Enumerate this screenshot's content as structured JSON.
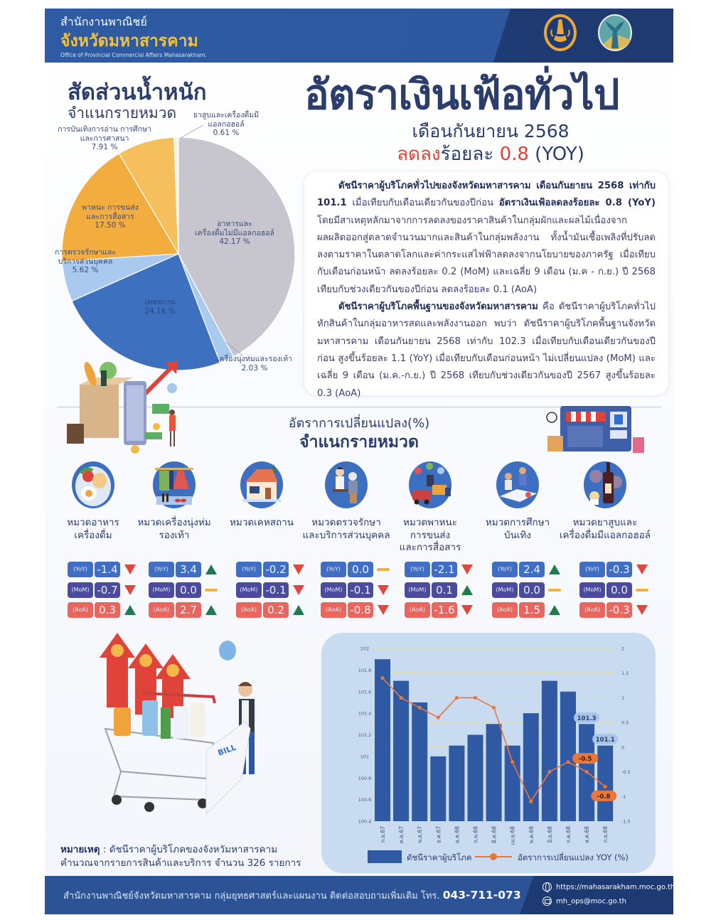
{
  "header": {
    "org_line1": "สำนักงานพาณิชย์",
    "org_line2": "จังหวัดมหาสารคาม",
    "org_en": "Office of Provincial Commercial Affairs Mahasarakham."
  },
  "weights": {
    "title": "สัดส่วนน้ำหนัก",
    "subtitle": "จำแนกรายหมวด"
  },
  "headline": {
    "title": "อัตราเงินเฟ้อทั่วไป",
    "month": "เดือนกันยายน 2568",
    "change_word": "ลดลง",
    "change_mid": "ร้อยละ ",
    "change_value": "0.8",
    "change_suffix": " (YOY)"
  },
  "summary": {
    "p1_b1": "ดัชนีราคาผู้บริโภคทั่วไปของจังหวัดมหาสารคาม เดือนกันยายน 2568 เท่ากับ 101.1",
    "p1_t1": " เมื่อเทียบกับเดือนเดียวกันของปีก่อน ",
    "p1_b2": "อัตราเงินเฟ้อลดลงร้อยละ 0.8 (YoY)",
    "p1_t2": " โดยมีสาเหตุหลักมาจากการลดลงของราคาสินค้าในกลุ่มผักและผลไม้เนื่องจากผลผลิตออกสู่ตลาดจำนวนมากและสินค้าในกลุ่มพลังงาน ทั้งน้ำมันเชื้อเพลิงที่ปรับลดลงตามราคาในตลาดโลกและค่ากระแสไฟฟ้าลดลงจากนโยบายของภาครัฐ เมื่อเทียบกับเดือนก่อนหน้า ลดลงร้อยละ 0.2 (MoM) และเฉลี่ย 9 เดือน (ม.ค - ก.ย.) ปี 2568 เทียบกับช่วงเดียวกันของปีก่อน ลดลงร้อยละ 0.1 (AoA)",
    "p2_b1": "ดัชนีราคาผู้บริโภคพื้นฐานของจังหวัดมหาสารคาม",
    "p2_t1": " คือ ดัชนีราคาผู้บริโภคทั่วไปหักสินค้าในกลุ่มอาหารสดและพลังงานออก พบว่า ดัชนีราคาผู้บริโภคพื้นฐานจังหวัดมหาสารคาม เดือนกันยายน 2568 เท่ากับ 102.3 เมื่อเทียบกับเดือนเดียวกันของปีก่อน สูงขึ้นร้อยละ 1.1 (YoY) เมื่อเทียบกับเดือนก่อนหน้า ไม่เปลี่ยนแปลง (MoM) และเฉลี่ย 9 เดือน (ม.ค.-ก.ย.) ปี 2568 เทียบกับช่วงเดียวกันของปี 2567 สูงขึ้นร้อยละ 0.3 (AoA)"
  },
  "section": {
    "title1": "อัตราการเปลี่ยนแปลง(%)",
    "title2": "จำแนกรายหมวด"
  },
  "stat_labels": {
    "yoy": "(YoY)",
    "mom": "(MoM)",
    "aoa": "(AoA)"
  },
  "categories": [
    {
      "label": "หมวดอาหาร\nเครื่องดื่ม",
      "icon": "food-icon",
      "yoy": {
        "value": "-1.4",
        "trend": "down"
      },
      "mom": {
        "value": "-0.7",
        "trend": "down"
      },
      "aoa": {
        "value": "0.3",
        "trend": "up"
      }
    },
    {
      "label": "หมวดเครื่องนุ่งห่ม\nรองเท้า",
      "icon": "clothing-icon",
      "yoy": {
        "value": "3.4",
        "trend": "up"
      },
      "mom": {
        "value": "0.0",
        "trend": "flat"
      },
      "aoa": {
        "value": "2.7",
        "trend": "up"
      }
    },
    {
      "label": "หมวดเคหสถาน",
      "icon": "house-icon",
      "yoy": {
        "value": "-0.2",
        "trend": "down"
      },
      "mom": {
        "value": "-0.1",
        "trend": "down"
      },
      "aoa": {
        "value": "0.2",
        "trend": "up"
      }
    },
    {
      "label": "หมวดตรวจรักษา\nและบริการส่วนบุคคล",
      "icon": "medical-icon",
      "yoy": {
        "value": "0.0",
        "trend": "flat"
      },
      "mom": {
        "value": "-0.1",
        "trend": "down"
      },
      "aoa": {
        "value": "-0.8",
        "trend": "down"
      }
    },
    {
      "label": "หมวดพาหนะ\nการขนส่ง\nและการสื่อสาร",
      "icon": "transport-icon",
      "yoy": {
        "value": "-2.1",
        "trend": "down"
      },
      "mom": {
        "value": "0.1",
        "trend": "up"
      },
      "aoa": {
        "value": "-1.6",
        "trend": "down"
      }
    },
    {
      "label": "หมวดการศึกษา\nบันเทิง",
      "icon": "education-icon",
      "yoy": {
        "value": "2.4",
        "trend": "up"
      },
      "mom": {
        "value": "0.0",
        "trend": "flat"
      },
      "aoa": {
        "value": "1.5",
        "trend": "up"
      }
    },
    {
      "label": "หมวดยาสูบและ\nเครื่องดื่มมีแอลกอฮอล์",
      "icon": "alcohol-icon",
      "yoy": {
        "value": "-0.3",
        "trend": "down"
      },
      "mom": {
        "value": "0.0",
        "trend": "flat"
      },
      "aoa": {
        "value": "-0.3",
        "trend": "down"
      }
    }
  ],
  "illustrations": {
    "receipt_text": "BILL"
  },
  "note": {
    "label": "หมายเหตุ",
    "line1": " : ดัชนีราคาผู้บริโภคของจังหวัมหาสารคาม",
    "line2": "คำนวณจากรายการสินค้าและบริการ จำนวน 326 รายการ"
  },
  "footer": {
    "text": "สำนักงานพาณิชย์จังหวัดมหาสารคาม กลุ่มยุทธศาสตร์และแผนงาน ติดต่อสอบถามเพิ่มเติม โทร. ",
    "phone": "043-711-073",
    "website": "https://mahasarakham.moc.go.th",
    "email": "mh_ops@moc.go.th"
  },
  "colors": {
    "navy": "#2b3d6b",
    "accent_red": "#e0433a",
    "gold": "#f4c13c",
    "yoy_box": "#3f6ec4",
    "mom_box": "#4b4a9e",
    "aoa_box": "#e8665e",
    "trend_up": "#1f7a4f",
    "trend_down": "#e1473c",
    "trend_flat": "#f3b13a",
    "bar": "#2f5aa3",
    "line": "#e8773d",
    "chart_bg": "#c9dbf0"
  },
  "chart_data": [
    {
      "type": "pie",
      "title": "สัดส่วนน้ำหนัก",
      "subtitle": "จำแนกรายหมวด",
      "start": "top",
      "direction": "clockwise",
      "slices": [
        {
          "key": "food",
          "label": "อาหารและ\nเครื่องดื่มไม่มีแอลกอฮอล์\n42.17 %",
          "value": 42.17,
          "color": "#c7c6cf"
        },
        {
          "key": "apparel",
          "label": "เครื่องนุ่งห่มและรองเท้า\n2.03 %",
          "value": 2.03,
          "color": "#a9c9ef"
        },
        {
          "key": "housing",
          "label": "เคหสถาน\n24.16 %",
          "value": 24.16,
          "color": "#3d70bf"
        },
        {
          "key": "medical",
          "label": "การตรวจรักษาและ\nบริการส่วนบุคคล\n5.62 %",
          "value": 5.62,
          "color": "#a9c9ef"
        },
        {
          "key": "transport",
          "label": "พาหนะ การขนส่ง\nและการสื่อสาร\n17.50 %",
          "value": 17.5,
          "color": "#f3ad3f"
        },
        {
          "key": "education",
          "label": "การบันเทิงการอ่าน การศึกษา\nและการศาสนา\n7.91 %",
          "value": 7.91,
          "color": "#f6bf5e"
        },
        {
          "key": "tobacco",
          "label": "ยาสูบและเครื่องดื่มมี\nแอลกอฮอล์\n0.61 %",
          "value": 0.61,
          "color": "#f4f1ec"
        }
      ]
    },
    {
      "type": "bar",
      "title": "",
      "categories": [
        "ก.ย.67",
        "ต.ค.67",
        "พ.ย.67",
        "ธ.ค.67",
        "ม.ค.68",
        "ก.พ.68",
        "มี.ค.68",
        "เม.ย.68",
        "พ.ค.68",
        "มิ.ย.68",
        "ก.ค.68",
        "ส.ค.68",
        "ก.ย.68"
      ],
      "series": [
        {
          "name": "ดัชนีราคาผู้บริโภค",
          "type": "bar",
          "axis": "left",
          "values": [
            101.9,
            101.7,
            101.5,
            101.0,
            101.1,
            101.2,
            101.3,
            101.1,
            101.4,
            101.7,
            101.6,
            101.3,
            101.1
          ]
        },
        {
          "name": "อัตราการเปลี่ยนแปลง YOY (%)",
          "type": "line",
          "axis": "right",
          "values": [
            1.4,
            1.0,
            0.8,
            0.6,
            1.0,
            1.0,
            0.8,
            -0.3,
            -1.1,
            -0.5,
            -0.3,
            -0.5,
            -0.8
          ]
        }
      ],
      "y_left": {
        "lim": [
          100.4,
          102
        ],
        "ticks": [
          "102",
          "101.8",
          "101.6",
          "101.4",
          "101.2",
          "101",
          "100.8",
          "100.6",
          "100.4"
        ]
      },
      "y_right": {
        "lim": [
          -1.5,
          2
        ],
        "ticks": [
          "2",
          "1.5",
          "1",
          "0.5",
          "0",
          "-0.5",
          "-1",
          "-1.5"
        ]
      },
      "data_labels": [
        {
          "series": 0,
          "index": 11,
          "text": "101.3",
          "place": "above"
        },
        {
          "series": 0,
          "index": 12,
          "text": "101.1",
          "place": "above"
        },
        {
          "series": 1,
          "index": 11,
          "text": "-0.5",
          "place": "above"
        },
        {
          "series": 1,
          "index": 12,
          "text": "-0.8",
          "place": "below"
        }
      ],
      "grid": true,
      "legend": "bottom"
    }
  ]
}
